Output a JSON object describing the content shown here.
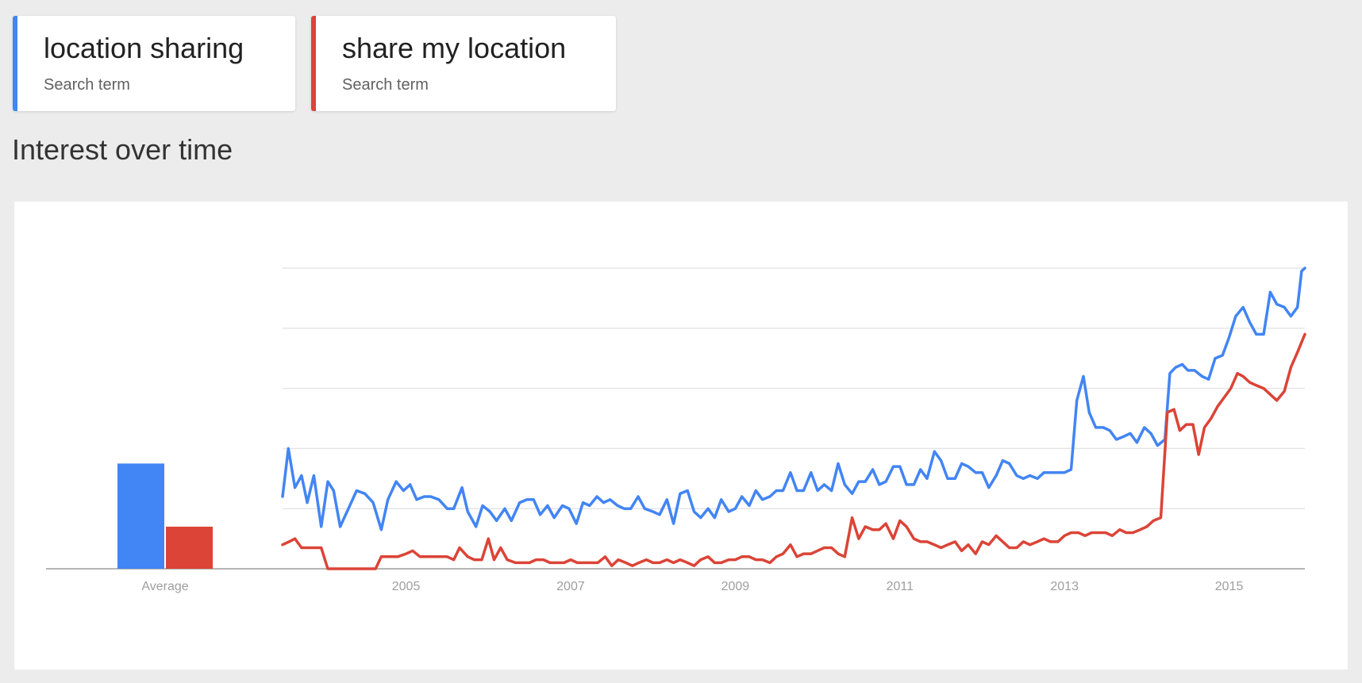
{
  "search_terms": [
    {
      "term": "location sharing",
      "subtitle": "Search term",
      "color": "#4285f4"
    },
    {
      "term": "share my location",
      "subtitle": "Search term",
      "color": "#db4437"
    }
  ],
  "section": {
    "title": "Interest over time"
  },
  "chart_data": {
    "type": "line",
    "title": "",
    "xlabel": "",
    "ylabel": "",
    "ylim": [
      0,
      100
    ],
    "xlim": [
      2004.0,
      2016.42
    ],
    "grid": true,
    "x_ticks": [
      "2005",
      "2007",
      "2009",
      "2011",
      "2013",
      "2015"
    ],
    "average": {
      "label": "Average",
      "values": [
        35,
        14
      ]
    },
    "series": [
      {
        "name": "location sharing",
        "color": "#4285f4",
        "points": [
          [
            2004.0,
            24
          ],
          [
            2004.07,
            40
          ],
          [
            2004.15,
            27
          ],
          [
            2004.23,
            31
          ],
          [
            2004.3,
            22
          ],
          [
            2004.38,
            31
          ],
          [
            2004.47,
            14
          ],
          [
            2004.55,
            29
          ],
          [
            2004.62,
            26
          ],
          [
            2004.7,
            14
          ],
          [
            2004.8,
            20
          ],
          [
            2004.9,
            26
          ],
          [
            2005.0,
            25
          ],
          [
            2005.1,
            22
          ],
          [
            2005.2,
            13
          ],
          [
            2005.28,
            23
          ],
          [
            2005.38,
            29
          ],
          [
            2005.47,
            26
          ],
          [
            2005.55,
            28
          ],
          [
            2005.63,
            23
          ],
          [
            2005.72,
            24
          ],
          [
            2005.8,
            24
          ],
          [
            2005.9,
            23
          ],
          [
            2006.0,
            20
          ],
          [
            2006.08,
            20
          ],
          [
            2006.18,
            27
          ],
          [
            2006.25,
            19
          ],
          [
            2006.35,
            14
          ],
          [
            2006.43,
            21
          ],
          [
            2006.52,
            19
          ],
          [
            2006.6,
            16
          ],
          [
            2006.7,
            20
          ],
          [
            2006.78,
            16
          ],
          [
            2006.88,
            22
          ],
          [
            2006.97,
            23
          ],
          [
            2007.05,
            23
          ],
          [
            2007.13,
            18
          ],
          [
            2007.22,
            21
          ],
          [
            2007.3,
            17
          ],
          [
            2007.4,
            21
          ],
          [
            2007.48,
            20
          ],
          [
            2007.57,
            15
          ],
          [
            2007.65,
            22
          ],
          [
            2007.73,
            21
          ],
          [
            2007.82,
            24
          ],
          [
            2007.9,
            22
          ],
          [
            2007.98,
            23
          ],
          [
            2008.07,
            21
          ],
          [
            2008.15,
            20
          ],
          [
            2008.23,
            20
          ],
          [
            2008.32,
            24
          ],
          [
            2008.4,
            20
          ],
          [
            2008.5,
            19
          ],
          [
            2008.58,
            18
          ],
          [
            2008.67,
            23
          ],
          [
            2008.75,
            15
          ],
          [
            2008.83,
            25
          ],
          [
            2008.92,
            26
          ],
          [
            2009.0,
            19
          ],
          [
            2009.08,
            17
          ],
          [
            2009.17,
            20
          ],
          [
            2009.25,
            17
          ],
          [
            2009.33,
            23
          ],
          [
            2009.42,
            19
          ],
          [
            2009.5,
            20
          ],
          [
            2009.58,
            24
          ],
          [
            2009.67,
            21
          ],
          [
            2009.75,
            26
          ],
          [
            2009.83,
            23
          ],
          [
            2009.92,
            24
          ],
          [
            2010.0,
            26
          ],
          [
            2010.08,
            26
          ],
          [
            2010.17,
            32
          ],
          [
            2010.25,
            26
          ],
          [
            2010.33,
            26
          ],
          [
            2010.42,
            32
          ],
          [
            2010.5,
            26
          ],
          [
            2010.58,
            28
          ],
          [
            2010.67,
            26
          ],
          [
            2010.75,
            35
          ],
          [
            2010.83,
            28
          ],
          [
            2010.92,
            25
          ],
          [
            2011.0,
            29
          ],
          [
            2011.08,
            29
          ],
          [
            2011.17,
            33
          ],
          [
            2011.25,
            28
          ],
          [
            2011.33,
            29
          ],
          [
            2011.42,
            34
          ],
          [
            2011.5,
            34
          ],
          [
            2011.58,
            28
          ],
          [
            2011.67,
            28
          ],
          [
            2011.75,
            33
          ],
          [
            2011.83,
            30
          ],
          [
            2011.92,
            39
          ],
          [
            2012.0,
            36
          ],
          [
            2012.08,
            30
          ],
          [
            2012.17,
            30
          ],
          [
            2012.25,
            35
          ],
          [
            2012.33,
            34
          ],
          [
            2012.42,
            32
          ],
          [
            2012.5,
            32
          ],
          [
            2012.58,
            27
          ],
          [
            2012.67,
            31
          ],
          [
            2012.75,
            36
          ],
          [
            2012.83,
            35
          ],
          [
            2012.92,
            31
          ],
          [
            2013.0,
            30
          ],
          [
            2013.08,
            31
          ],
          [
            2013.17,
            30
          ],
          [
            2013.25,
            32
          ],
          [
            2013.33,
            32
          ],
          [
            2013.42,
            32
          ],
          [
            2013.5,
            32
          ],
          [
            2013.58,
            33
          ],
          [
            2013.65,
            56
          ],
          [
            2013.73,
            64
          ],
          [
            2013.8,
            52
          ],
          [
            2013.88,
            47
          ],
          [
            2013.97,
            47
          ],
          [
            2014.05,
            46
          ],
          [
            2014.13,
            43
          ],
          [
            2014.22,
            44
          ],
          [
            2014.3,
            45
          ],
          [
            2014.38,
            42
          ],
          [
            2014.47,
            47
          ],
          [
            2014.55,
            45
          ],
          [
            2014.63,
            41
          ],
          [
            2014.72,
            43
          ],
          [
            2014.78,
            65
          ],
          [
            2014.85,
            67
          ],
          [
            2014.93,
            68
          ],
          [
            2015.0,
            66
          ],
          [
            2015.08,
            66
          ],
          [
            2015.17,
            64
          ],
          [
            2015.25,
            63
          ],
          [
            2015.33,
            70
          ],
          [
            2015.42,
            71
          ],
          [
            2015.5,
            77
          ],
          [
            2015.58,
            84
          ],
          [
            2015.67,
            87
          ],
          [
            2015.75,
            82
          ],
          [
            2015.83,
            78
          ],
          [
            2015.92,
            78
          ],
          [
            2016.0,
            92
          ],
          [
            2016.08,
            88
          ],
          [
            2016.17,
            87
          ],
          [
            2016.25,
            84
          ],
          [
            2016.33,
            87
          ],
          [
            2016.38,
            99
          ],
          [
            2016.42,
            100
          ]
        ]
      },
      {
        "name": "share my location",
        "color": "#db4437",
        "points": [
          [
            2004.0,
            8
          ],
          [
            2004.08,
            9
          ],
          [
            2004.15,
            10
          ],
          [
            2004.23,
            7
          ],
          [
            2004.3,
            7
          ],
          [
            2004.38,
            7
          ],
          [
            2004.47,
            7
          ],
          [
            2004.55,
            0
          ],
          [
            2004.65,
            0
          ],
          [
            2004.75,
            0
          ],
          [
            2004.85,
            0
          ],
          [
            2004.95,
            0
          ],
          [
            2005.13,
            0
          ],
          [
            2005.2,
            4
          ],
          [
            2005.3,
            4
          ],
          [
            2005.4,
            4
          ],
          [
            2005.5,
            5
          ],
          [
            2005.58,
            6
          ],
          [
            2005.67,
            4
          ],
          [
            2005.75,
            4
          ],
          [
            2005.83,
            4
          ],
          [
            2005.92,
            4
          ],
          [
            2006.0,
            4
          ],
          [
            2006.08,
            3
          ],
          [
            2006.15,
            7
          ],
          [
            2006.25,
            4
          ],
          [
            2006.33,
            3
          ],
          [
            2006.42,
            3
          ],
          [
            2006.5,
            10
          ],
          [
            2006.57,
            3
          ],
          [
            2006.65,
            7
          ],
          [
            2006.73,
            3
          ],
          [
            2006.83,
            2
          ],
          [
            2006.92,
            2
          ],
          [
            2007.0,
            2
          ],
          [
            2007.08,
            3
          ],
          [
            2007.17,
            3
          ],
          [
            2007.25,
            2
          ],
          [
            2007.33,
            2
          ],
          [
            2007.42,
            2
          ],
          [
            2007.5,
            3
          ],
          [
            2007.58,
            2
          ],
          [
            2007.67,
            2
          ],
          [
            2007.75,
            2
          ],
          [
            2007.83,
            2
          ],
          [
            2007.92,
            4
          ],
          [
            2008.0,
            1
          ],
          [
            2008.08,
            3
          ],
          [
            2008.17,
            2
          ],
          [
            2008.25,
            1
          ],
          [
            2008.33,
            2
          ],
          [
            2008.42,
            3
          ],
          [
            2008.5,
            2
          ],
          [
            2008.58,
            2
          ],
          [
            2008.67,
            3
          ],
          [
            2008.75,
            2
          ],
          [
            2008.83,
            3
          ],
          [
            2008.92,
            2
          ],
          [
            2009.0,
            1
          ],
          [
            2009.08,
            3
          ],
          [
            2009.17,
            4
          ],
          [
            2009.25,
            2
          ],
          [
            2009.33,
            2
          ],
          [
            2009.42,
            3
          ],
          [
            2009.5,
            3
          ],
          [
            2009.58,
            4
          ],
          [
            2009.67,
            4
          ],
          [
            2009.75,
            3
          ],
          [
            2009.83,
            3
          ],
          [
            2009.92,
            2
          ],
          [
            2010.0,
            4
          ],
          [
            2010.08,
            5
          ],
          [
            2010.17,
            8
          ],
          [
            2010.25,
            4
          ],
          [
            2010.33,
            5
          ],
          [
            2010.42,
            5
          ],
          [
            2010.5,
            6
          ],
          [
            2010.58,
            7
          ],
          [
            2010.67,
            7
          ],
          [
            2010.75,
            5
          ],
          [
            2010.83,
            4
          ],
          [
            2010.92,
            17
          ],
          [
            2011.0,
            10
          ],
          [
            2011.08,
            14
          ],
          [
            2011.17,
            13
          ],
          [
            2011.25,
            13
          ],
          [
            2011.33,
            15
          ],
          [
            2011.42,
            10
          ],
          [
            2011.5,
            16
          ],
          [
            2011.58,
            14
          ],
          [
            2011.67,
            10
          ],
          [
            2011.75,
            9
          ],
          [
            2011.83,
            9
          ],
          [
            2011.92,
            8
          ],
          [
            2012.0,
            7
          ],
          [
            2012.08,
            8
          ],
          [
            2012.17,
            9
          ],
          [
            2012.25,
            6
          ],
          [
            2012.33,
            8
          ],
          [
            2012.42,
            5
          ],
          [
            2012.5,
            9
          ],
          [
            2012.58,
            8
          ],
          [
            2012.67,
            11
          ],
          [
            2012.75,
            9
          ],
          [
            2012.83,
            7
          ],
          [
            2012.92,
            7
          ],
          [
            2013.0,
            9
          ],
          [
            2013.08,
            8
          ],
          [
            2013.17,
            9
          ],
          [
            2013.25,
            10
          ],
          [
            2013.33,
            9
          ],
          [
            2013.42,
            9
          ],
          [
            2013.5,
            11
          ],
          [
            2013.58,
            12
          ],
          [
            2013.67,
            12
          ],
          [
            2013.75,
            11
          ],
          [
            2013.83,
            12
          ],
          [
            2013.92,
            12
          ],
          [
            2014.0,
            12
          ],
          [
            2014.08,
            11
          ],
          [
            2014.17,
            13
          ],
          [
            2014.25,
            12
          ],
          [
            2014.33,
            12
          ],
          [
            2014.42,
            13
          ],
          [
            2014.5,
            14
          ],
          [
            2014.58,
            16
          ],
          [
            2014.67,
            17
          ],
          [
            2014.75,
            52
          ],
          [
            2014.83,
            53
          ],
          [
            2014.9,
            46
          ],
          [
            2014.98,
            48
          ],
          [
            2015.06,
            48
          ],
          [
            2015.13,
            38
          ],
          [
            2015.2,
            47
          ],
          [
            2015.28,
            50
          ],
          [
            2015.36,
            54
          ],
          [
            2015.44,
            57
          ],
          [
            2015.52,
            60
          ],
          [
            2015.6,
            65
          ],
          [
            2015.67,
            64
          ],
          [
            2015.75,
            62
          ],
          [
            2015.83,
            61
          ],
          [
            2015.92,
            60
          ],
          [
            2016.0,
            58
          ],
          [
            2016.08,
            56
          ],
          [
            2016.17,
            59
          ],
          [
            2016.25,
            67
          ],
          [
            2016.33,
            72
          ],
          [
            2016.42,
            78
          ]
        ]
      }
    ]
  }
}
